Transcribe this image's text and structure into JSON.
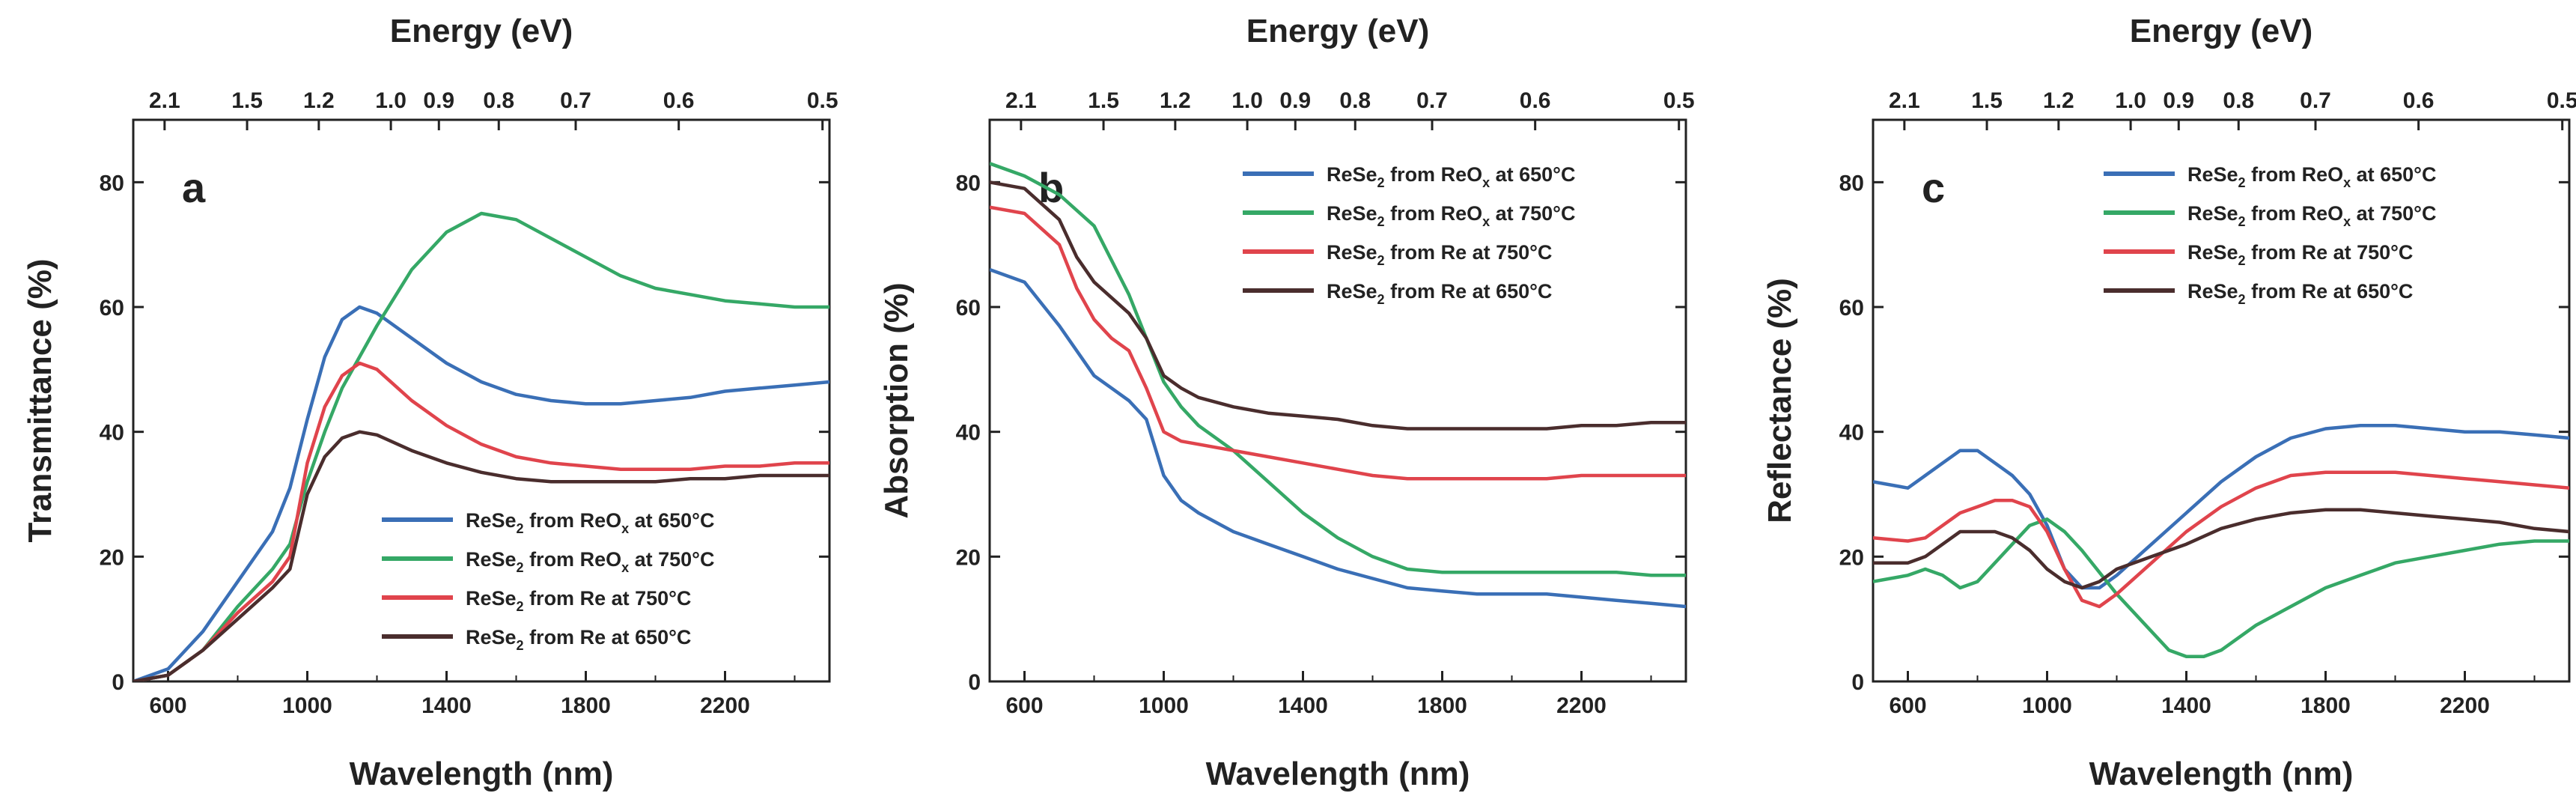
{
  "figure": {
    "type": "line",
    "colors": {
      "blue": "#3a6fb6",
      "green": "#35a866",
      "red": "#e0444c",
      "dark": "#4a2d2d",
      "axis": "#222222"
    }
  },
  "chart_data": [
    {
      "type": "line",
      "panel": "a",
      "title": "",
      "xlabel": "Wavelength (nm)",
      "ylabel": "Transmittance (%)",
      "top_xlabel": "Energy (eV)",
      "xlim": [
        500,
        2500
      ],
      "ylim": [
        0,
        90
      ],
      "xticks": [
        600,
        1000,
        1400,
        1800,
        2200
      ],
      "yticks": [
        0,
        20,
        40,
        60,
        80
      ],
      "top_ticks": [
        {
          "label": "2.1",
          "x": 590
        },
        {
          "label": "1.5",
          "x": 827
        },
        {
          "label": "1.2",
          "x": 1033
        },
        {
          "label": "1.0",
          "x": 1240
        },
        {
          "label": "0.9",
          "x": 1378
        },
        {
          "label": "0.8",
          "x": 1550
        },
        {
          "label": "0.7",
          "x": 1771
        },
        {
          "label": "0.6",
          "x": 2067
        },
        {
          "label": "0.5",
          "x": 2480
        }
      ],
      "legend_position": "lower-right",
      "series": [
        {
          "name": "ReSe2 from ReOx at 650°C",
          "label_main": "ReSe",
          "sub1": "2",
          "label_mid": " from ReO",
          "sub2": "x",
          "label_end": " at 650°C",
          "color": "#3a6fb6",
          "x": [
            500,
            600,
            700,
            800,
            900,
            950,
            1000,
            1050,
            1100,
            1150,
            1200,
            1300,
            1400,
            1500,
            1600,
            1700,
            1800,
            1900,
            2000,
            2100,
            2200,
            2300,
            2400,
            2500
          ],
          "y": [
            0,
            2,
            8,
            16,
            24,
            31,
            42,
            52,
            58,
            60,
            59,
            55,
            51,
            48,
            46,
            45,
            44.5,
            44.5,
            45,
            45.5,
            46.5,
            47,
            47.5,
            48
          ]
        },
        {
          "name": "ReSe2 from ReOx at 750°C",
          "label_main": "ReSe",
          "sub1": "2",
          "label_mid": " from ReO",
          "sub2": "x",
          "label_end": " at 750°C",
          "color": "#35a866",
          "x": [
            500,
            600,
            700,
            800,
            900,
            950,
            1000,
            1050,
            1100,
            1200,
            1300,
            1400,
            1500,
            1600,
            1700,
            1800,
            1900,
            2000,
            2100,
            2200,
            2300,
            2400,
            2500
          ],
          "y": [
            0,
            1,
            5,
            12,
            18,
            22,
            32,
            40,
            47,
            57,
            66,
            72,
            75,
            74,
            71,
            68,
            65,
            63,
            62,
            61,
            60.5,
            60,
            60
          ]
        },
        {
          "name": "ReSe2 from Re at 750°C",
          "label_main": "ReSe",
          "sub1": "2",
          "label_mid": " from Re at 750°C",
          "sub2": "",
          "label_end": "",
          "color": "#e0444c",
          "x": [
            500,
            600,
            700,
            800,
            900,
            950,
            1000,
            1050,
            1100,
            1150,
            1200,
            1300,
            1400,
            1500,
            1600,
            1700,
            1800,
            1900,
            2000,
            2100,
            2200,
            2300,
            2400,
            2500
          ],
          "y": [
            0,
            1,
            5,
            11,
            16,
            20,
            35,
            44,
            49,
            51,
            50,
            45,
            41,
            38,
            36,
            35,
            34.5,
            34,
            34,
            34,
            34.5,
            34.5,
            35,
            35
          ]
        },
        {
          "name": "ReSe2 from Re at 650°C",
          "label_main": "ReSe",
          "sub1": "2",
          "label_mid": " from Re at 650°C",
          "sub2": "",
          "label_end": "",
          "color": "#4a2d2d",
          "x": [
            500,
            600,
            700,
            800,
            900,
            950,
            1000,
            1050,
            1100,
            1150,
            1200,
            1300,
            1400,
            1500,
            1600,
            1700,
            1800,
            1900,
            2000,
            2100,
            2200,
            2300,
            2400,
            2500
          ],
          "y": [
            0,
            1,
            5,
            10,
            15,
            18,
            30,
            36,
            39,
            40,
            39.5,
            37,
            35,
            33.5,
            32.5,
            32,
            32,
            32,
            32,
            32.5,
            32.5,
            33,
            33,
            33
          ]
        }
      ]
    },
    {
      "type": "line",
      "panel": "b",
      "title": "",
      "xlabel": "Wavelength (nm)",
      "ylabel": "Absorption (%)",
      "top_xlabel": "Energy (eV)",
      "xlim": [
        500,
        2500
      ],
      "ylim": [
        0,
        90
      ],
      "xticks": [
        600,
        1000,
        1400,
        1800,
        2200
      ],
      "yticks": [
        0,
        20,
        40,
        60,
        80
      ],
      "top_ticks": [
        {
          "label": "2.1",
          "x": 590
        },
        {
          "label": "1.5",
          "x": 827
        },
        {
          "label": "1.2",
          "x": 1033
        },
        {
          "label": "1.0",
          "x": 1240
        },
        {
          "label": "0.9",
          "x": 1378
        },
        {
          "label": "0.8",
          "x": 1550
        },
        {
          "label": "0.7",
          "x": 1771
        },
        {
          "label": "0.6",
          "x": 2067
        },
        {
          "label": "0.5",
          "x": 2480
        }
      ],
      "legend_position": "top-right",
      "series": [
        {
          "name": "ReSe2 from ReOx at 650°C",
          "label_main": "ReSe",
          "sub1": "2",
          "label_mid": " from ReO",
          "sub2": "x",
          "label_end": " at 650°C",
          "color": "#3a6fb6",
          "x": [
            500,
            600,
            700,
            800,
            850,
            900,
            950,
            1000,
            1050,
            1100,
            1200,
            1300,
            1400,
            1500,
            1600,
            1700,
            1800,
            1900,
            2000,
            2100,
            2200,
            2300,
            2400,
            2500
          ],
          "y": [
            66,
            64,
            57,
            49,
            47,
            45,
            42,
            33,
            29,
            27,
            24,
            22,
            20,
            18,
            16.5,
            15,
            14.5,
            14,
            14,
            14,
            13.5,
            13,
            12.5,
            12
          ]
        },
        {
          "name": "ReSe2 from ReOx at 750°C",
          "label_main": "ReSe",
          "sub1": "2",
          "label_mid": " from ReO",
          "sub2": "x",
          "label_end": " at 750°C",
          "color": "#35a866",
          "x": [
            500,
            600,
            700,
            800,
            900,
            950,
            1000,
            1050,
            1100,
            1200,
            1300,
            1400,
            1500,
            1600,
            1700,
            1800,
            1900,
            2000,
            2100,
            2200,
            2300,
            2400,
            2500
          ],
          "y": [
            83,
            81,
            78,
            73,
            62,
            55,
            48,
            44,
            41,
            37,
            32,
            27,
            23,
            20,
            18,
            17.5,
            17.5,
            17.5,
            17.5,
            17.5,
            17.5,
            17,
            17
          ]
        },
        {
          "name": "ReSe2 from Re at 750°C",
          "label_main": "ReSe",
          "sub1": "2",
          "label_mid": " from Re at 750°C",
          "sub2": "",
          "label_end": "",
          "color": "#e0444c",
          "x": [
            500,
            600,
            700,
            750,
            800,
            850,
            900,
            950,
            1000,
            1050,
            1100,
            1200,
            1300,
            1400,
            1500,
            1600,
            1700,
            1800,
            1900,
            2000,
            2100,
            2200,
            2300,
            2400,
            2500
          ],
          "y": [
            76,
            75,
            70,
            63,
            58,
            55,
            53,
            47,
            40,
            38.5,
            38,
            37,
            36,
            35,
            34,
            33,
            32.5,
            32.5,
            32.5,
            32.5,
            32.5,
            33,
            33,
            33,
            33
          ]
        },
        {
          "name": "ReSe2 from Re at 650°C",
          "label_main": "ReSe",
          "sub1": "2",
          "label_mid": " from Re at 650°C",
          "sub2": "",
          "label_end": "",
          "color": "#4a2d2d",
          "x": [
            500,
            600,
            700,
            750,
            800,
            900,
            950,
            1000,
            1050,
            1100,
            1200,
            1300,
            1400,
            1500,
            1600,
            1700,
            1800,
            1900,
            2000,
            2100,
            2200,
            2300,
            2400,
            2500
          ],
          "y": [
            80,
            79,
            74,
            68,
            64,
            59,
            55,
            49,
            47,
            45.5,
            44,
            43,
            42.5,
            42,
            41,
            40.5,
            40.5,
            40.5,
            40.5,
            40.5,
            41,
            41,
            41.5,
            41.5
          ]
        }
      ]
    },
    {
      "type": "line",
      "panel": "c",
      "title": "",
      "xlabel": "Wavelength (nm)",
      "ylabel": "Reflectance (%)",
      "top_xlabel": "Energy (eV)",
      "xlim": [
        500,
        2500
      ],
      "ylim": [
        0,
        90
      ],
      "xticks": [
        600,
        1000,
        1400,
        1800,
        2200
      ],
      "yticks": [
        0,
        20,
        40,
        60,
        80
      ],
      "top_ticks": [
        {
          "label": "2.1",
          "x": 590
        },
        {
          "label": "1.5",
          "x": 827
        },
        {
          "label": "1.2",
          "x": 1033
        },
        {
          "label": "1.0",
          "x": 1240
        },
        {
          "label": "0.9",
          "x": 1378
        },
        {
          "label": "0.8",
          "x": 1550
        },
        {
          "label": "0.7",
          "x": 1771
        },
        {
          "label": "0.6",
          "x": 2067
        },
        {
          "label": "0.5",
          "x": 2480
        }
      ],
      "legend_position": "top-right",
      "series": [
        {
          "name": "ReSe2 from ReOx at 650°C",
          "label_main": "ReSe",
          "sub1": "2",
          "label_mid": " from ReO",
          "sub2": "x",
          "label_end": " at 650°C",
          "color": "#3a6fb6",
          "x": [
            500,
            600,
            650,
            700,
            750,
            800,
            850,
            900,
            950,
            1000,
            1050,
            1100,
            1150,
            1200,
            1300,
            1400,
            1500,
            1600,
            1700,
            1800,
            1900,
            2000,
            2100,
            2200,
            2300,
            2400,
            2500
          ],
          "y": [
            32,
            31,
            33,
            35,
            37,
            37,
            35,
            33,
            30,
            25,
            18,
            15,
            15,
            17,
            22,
            27,
            32,
            36,
            39,
            40.5,
            41,
            41,
            40.5,
            40,
            40,
            39.5,
            39
          ]
        },
        {
          "name": "ReSe2 from ReOx at 750°C",
          "label_main": "ReSe",
          "sub1": "2",
          "label_mid": " from ReO",
          "sub2": "x",
          "label_end": " at 750°C",
          "color": "#35a866",
          "x": [
            500,
            600,
            650,
            700,
            750,
            800,
            850,
            900,
            950,
            1000,
            1050,
            1100,
            1200,
            1300,
            1350,
            1400,
            1450,
            1500,
            1600,
            1700,
            1800,
            1900,
            2000,
            2100,
            2200,
            2300,
            2400,
            2500
          ],
          "y": [
            16,
            17,
            18,
            17,
            15,
            16,
            19,
            22,
            25,
            26,
            24,
            21,
            14,
            8,
            5,
            4,
            4,
            5,
            9,
            12,
            15,
            17,
            19,
            20,
            21,
            22,
            22.5,
            22.5
          ]
        },
        {
          "name": "ReSe2 from Re at 750°C",
          "label_main": "ReSe",
          "sub1": "2",
          "label_mid": " from Re at 750°C",
          "sub2": "",
          "label_end": "",
          "color": "#e0444c",
          "x": [
            500,
            600,
            650,
            700,
            750,
            800,
            850,
            900,
            950,
            1000,
            1050,
            1100,
            1150,
            1200,
            1300,
            1400,
            1500,
            1600,
            1700,
            1800,
            1900,
            2000,
            2100,
            2200,
            2300,
            2400,
            2500
          ],
          "y": [
            23,
            22.5,
            23,
            25,
            27,
            28,
            29,
            29,
            28,
            24,
            18,
            13,
            12,
            14,
            19,
            24,
            28,
            31,
            33,
            33.5,
            33.5,
            33.5,
            33,
            32.5,
            32,
            31.5,
            31
          ]
        },
        {
          "name": "ReSe2 from Re at 650°C",
          "label_main": "ReSe",
          "sub1": "2",
          "label_mid": " from Re at 650°C",
          "sub2": "",
          "label_end": "",
          "color": "#4a2d2d",
          "x": [
            500,
            600,
            650,
            700,
            750,
            800,
            850,
            900,
            950,
            1000,
            1050,
            1100,
            1150,
            1200,
            1300,
            1400,
            1500,
            1600,
            1700,
            1800,
            1900,
            2000,
            2100,
            2200,
            2300,
            2400,
            2500
          ],
          "y": [
            19,
            19,
            20,
            22,
            24,
            24,
            24,
            23,
            21,
            18,
            16,
            15,
            16,
            18,
            20,
            22,
            24.5,
            26,
            27,
            27.5,
            27.5,
            27,
            26.5,
            26,
            25.5,
            24.5,
            24
          ]
        }
      ]
    }
  ]
}
